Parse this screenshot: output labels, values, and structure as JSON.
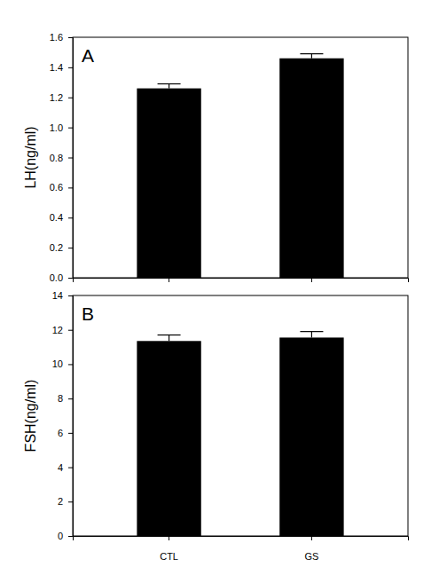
{
  "chart_data": [
    {
      "type": "bar",
      "title": "A",
      "y_label": "LH(ng/ml)",
      "categories": [
        "CTL",
        "GS"
      ],
      "values": [
        1.26,
        1.46
      ],
      "errors": [
        0.03,
        0.03
      ],
      "color": "#000000",
      "ylim": [
        0,
        1.6
      ],
      "yticks": [
        {
          "value": 0,
          "label": "0.0"
        },
        0.2,
        0.4,
        0.6,
        0.8,
        {
          "value": 1,
          "label": "1.0"
        },
        1.2,
        1.4,
        1.6
      ],
      "tick_labels": "y"
    },
    {
      "type": "bar",
      "title": "B",
      "y_label": "FSH(ng/ml)",
      "categories": [
        "CTL",
        "GS"
      ],
      "values": [
        11.35,
        11.55
      ],
      "errors": [
        0.35,
        0.35
      ],
      "color": "#000000",
      "ylim": [
        0,
        14
      ],
      "yticks": [
        0,
        2,
        4,
        6,
        8,
        10,
        12,
        14
      ]
    }
  ]
}
